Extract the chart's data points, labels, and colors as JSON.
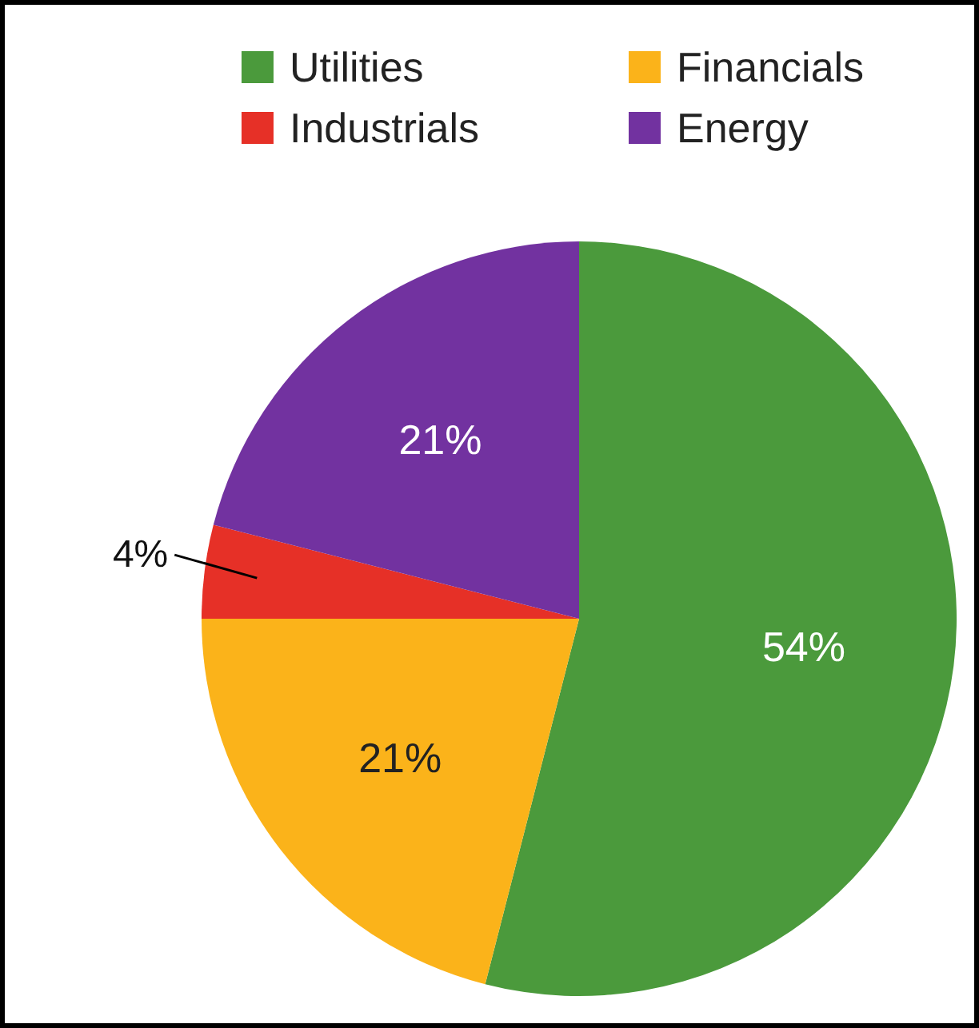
{
  "chart_data": {
    "type": "pie",
    "categories": [
      "Utilities",
      "Financials",
      "Industrials",
      "Energy"
    ],
    "values": [
      54,
      21,
      4,
      21
    ],
    "colors": [
      "#4b9a3c",
      "#fbb31a",
      "#e63027",
      "#7232a0"
    ],
    "value_labels": [
      "54%",
      "21%",
      "4%",
      "21%"
    ],
    "legend": "top"
  }
}
